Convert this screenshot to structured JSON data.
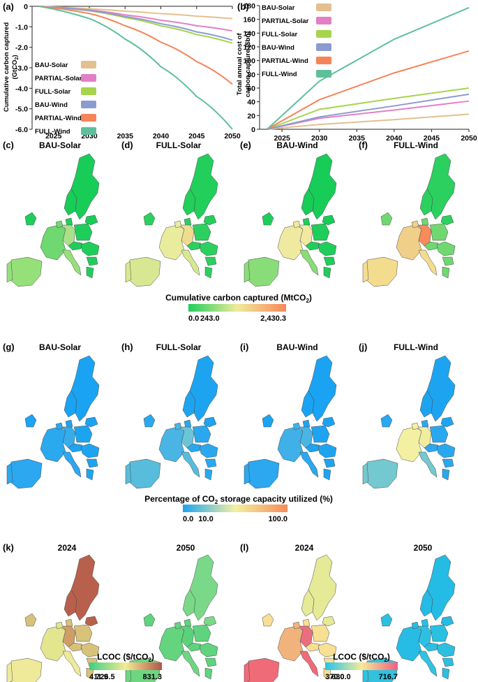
{
  "panels": {
    "a": "(a)",
    "b": "(b)",
    "c": "(c)",
    "d": "(d)",
    "e": "(e)",
    "f": "(f)",
    "g": "(g)",
    "h": "(h)",
    "i": "(i)",
    "j": "(j)",
    "k": "(k)",
    "l": "(l)"
  },
  "chart_data": [
    {
      "type": "line",
      "panel": "(a)",
      "ylabel": "Cumulative carbon captured (GtCO2)",
      "x_ticks": [
        "2025",
        "2030",
        "2035",
        "2040",
        "2045",
        "2050"
      ],
      "y_ticks": [
        "0",
        "-1.0",
        "-2.0",
        "-3.0",
        "-4.0",
        "-5.0",
        "-6.0"
      ],
      "xlim": [
        2022,
        2050
      ],
      "ylim": [
        -6.0,
        0
      ],
      "legend": "bottom-left",
      "grid": false,
      "series": [
        {
          "name": "BAU-Solar",
          "color": "#e3c08f",
          "x": [
            2023,
            2030,
            2035,
            2040,
            2045,
            2050
          ],
          "values": [
            0,
            -0.12,
            -0.24,
            -0.36,
            -0.48,
            -0.6
          ]
        },
        {
          "name": "PARTIAL-Solar",
          "color": "#e37fc4",
          "x": [
            2023,
            2030,
            2035,
            2040,
            2045,
            2050
          ],
          "values": [
            0,
            -0.18,
            -0.42,
            -0.68,
            -0.95,
            -1.2
          ]
        },
        {
          "name": "FULL-Solar",
          "color": "#a6d44c",
          "x": [
            2023,
            2030,
            2035,
            2040,
            2045,
            2050
          ],
          "values": [
            0,
            -0.22,
            -0.55,
            -0.95,
            -1.38,
            -1.8
          ]
        },
        {
          "name": "BAU-Wind",
          "color": "#8c9bcf",
          "x": [
            2023,
            2030,
            2035,
            2040,
            2045,
            2050
          ],
          "values": [
            0,
            -0.2,
            -0.5,
            -0.85,
            -1.25,
            -1.65
          ]
        },
        {
          "name": "PARTIAL-Wind",
          "color": "#f6845a",
          "x": [
            2023,
            2030,
            2035,
            2040,
            2045,
            2050
          ],
          "values": [
            0,
            -0.35,
            -0.95,
            -1.75,
            -2.7,
            -3.8
          ]
        },
        {
          "name": "FULL-Wind",
          "color": "#5fbf9b",
          "x": [
            2023,
            2030,
            2035,
            2040,
            2045,
            2050
          ],
          "values": [
            0,
            -0.6,
            -1.6,
            -2.95,
            -4.4,
            -6.0
          ]
        }
      ]
    },
    {
      "type": "line",
      "panel": "(b)",
      "ylabel": "Total annual cost of carbon capture ($bn)",
      "x_ticks": [
        "2025",
        "2030",
        "2035",
        "2040",
        "2045",
        "2050"
      ],
      "y_ticks": [
        "0",
        "20",
        "40",
        "60",
        "80",
        "100",
        "120",
        "140",
        "160",
        "180"
      ],
      "xlim": [
        2022,
        2050
      ],
      "ylim": [
        0,
        180
      ],
      "legend": "top-left",
      "grid": false,
      "series": [
        {
          "name": "BAU-Solar",
          "color": "#e3c08f",
          "x": [
            2023,
            2030,
            2040,
            2050
          ],
          "values": [
            0,
            7,
            14,
            22
          ]
        },
        {
          "name": "PARTIAL-Solar",
          "color": "#e37fc4",
          "x": [
            2023,
            2030,
            2040,
            2050
          ],
          "values": [
            0,
            16,
            28,
            41
          ]
        },
        {
          "name": "FULL-Solar",
          "color": "#a6d44c",
          "x": [
            2023,
            2030,
            2040,
            2050
          ],
          "values": [
            0,
            29,
            45,
            60
          ]
        },
        {
          "name": "BAU-Wind",
          "color": "#8c9bcf",
          "x": [
            2023,
            2030,
            2040,
            2050
          ],
          "values": [
            0,
            18,
            34,
            51
          ]
        },
        {
          "name": "PARTIAL-Wind",
          "color": "#f6845a",
          "x": [
            2023,
            2030,
            2040,
            2050
          ],
          "values": [
            0,
            43,
            82,
            114
          ]
        },
        {
          "name": "FULL-Wind",
          "color": "#5fbf9b",
          "x": [
            2023,
            2030,
            2040,
            2050
          ],
          "values": [
            0,
            70,
            131,
            177
          ]
        }
      ]
    }
  ],
  "map_rows": [
    {
      "titles": [
        "BAU-Solar",
        "FULL-Solar",
        "BAU-Wind",
        "FULL-Wind"
      ],
      "fills": [
        {
          "base": "#1fce5a",
          "west": "#6fd870",
          "south": "#96e07a",
          "centre": "#a9e08a",
          "north": "#18cc58"
        },
        {
          "base": "#2cd05f",
          "west": "#e9ec9c",
          "south": "#d8e892",
          "centre": "#f0dc8e",
          "north": "#22cf5a"
        },
        {
          "base": "#1fce5a",
          "west": "#f0eaa0",
          "south": "#89dd78",
          "centre": "#f2e8a0",
          "north": "#18cc58"
        },
        {
          "base": "#6fd870",
          "west": "#f0cf88",
          "south": "#f4dc8f",
          "centre": "#f78b5a",
          "north": "#2cd05f"
        }
      ],
      "colorbar": {
        "title": "Cumulative carbon captured (MtCO2)",
        "ticks": [
          "0.0",
          "243.0",
          "2,430.3"
        ],
        "stops": [
          "#1fce5a",
          "#f0ea9c",
          "#f8875a"
        ]
      }
    },
    {
      "titles": [
        "BAU-Solar",
        "FULL-Solar",
        "BAU-Wind",
        "FULL-Wind"
      ],
      "fills": [
        {
          "base": "#1da4f1",
          "west": "#2aa9ef",
          "south": "#2ba8ef",
          "centre": "#36aceb",
          "north": "#1aa3f2"
        },
        {
          "base": "#2aa8ef",
          "west": "#4ab5e4",
          "south": "#58bcdc",
          "centre": "#6cc5d6",
          "north": "#1da4f1"
        },
        {
          "base": "#1da4f1",
          "west": "#3fb0e8",
          "south": "#2ba8ef",
          "centre": "#4ab5e4",
          "north": "#1aa3f2"
        },
        {
          "base": "#2aa8ef",
          "west": "#f3f0a2",
          "south": "#74c8cf",
          "centre": "#f2eca0",
          "north": "#1da4f1"
        }
      ],
      "colorbar": {
        "title": "Percentage of CO2 storage capacity utilized (%)",
        "ticks": [
          "0.0",
          "10.0",
          "100.0"
        ],
        "stops": [
          "#1da4f1",
          "#f3f0a2",
          "#f78b5a"
        ]
      }
    },
    {
      "titles": [
        "2024",
        "2050",
        "2024",
        "2050"
      ],
      "fills": [
        {
          "base": "#d8c27a",
          "west": "#e3e68e",
          "south": "#eeea9a",
          "centre": "#cf9e66",
          "north": "#b9604c"
        },
        {
          "base": "#5fd37e",
          "west": "#64d47f",
          "south": "#6ed682",
          "centre": "#5ad27c",
          "north": "#7ad988"
        },
        {
          "base": "#f7df94",
          "west": "#f1b37c",
          "south": "#f06b78",
          "centre": "#ea6f7e",
          "north": "#e4ea96"
        },
        {
          "base": "#2bbfe2",
          "west": "#26bce4",
          "south": "#31c2e0",
          "centre": "#2ec0e2",
          "north": "#24bbe5"
        }
      ],
      "colorbars": [
        {
          "title": "LCOC ($/tCO2)",
          "ticks": [
            "411.9",
            "726.5",
            "831.3"
          ],
          "stops": [
            "#3ecf82",
            "#f4ea96",
            "#b5544a"
          ]
        },
        {
          "title": "LCOC ($/tCO2)",
          "ticks": [
            "370.0",
            "630.0",
            "716.7"
          ],
          "stops": [
            "#22c3ea",
            "#f5ea98",
            "#f06080"
          ]
        }
      ]
    }
  ]
}
